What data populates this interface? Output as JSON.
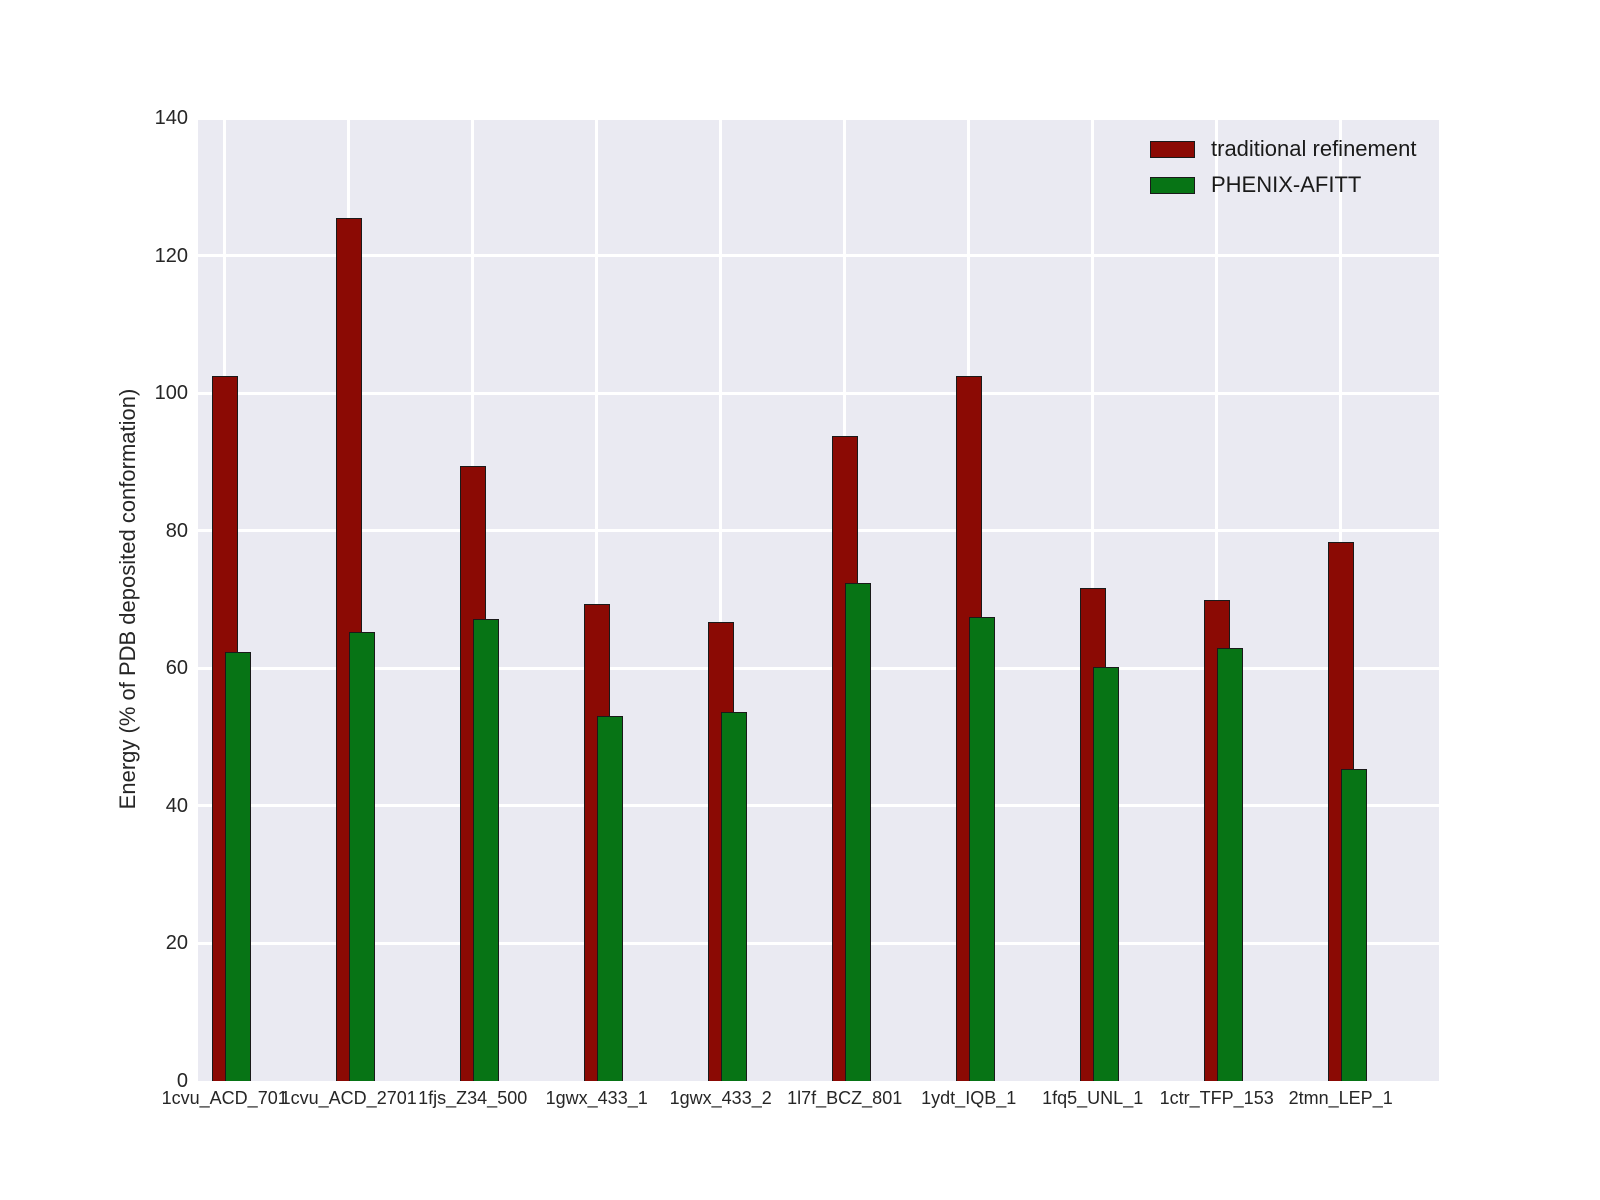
{
  "chart_data": {
    "type": "bar",
    "title": "",
    "xlabel": "",
    "ylabel": "Energy (% of PDB deposited conformation)",
    "ylim": [
      0,
      140
    ],
    "yticks": [
      0,
      20,
      40,
      60,
      80,
      100,
      120,
      140
    ],
    "grid": true,
    "grid_color": "#ffffff",
    "plot_background": "#eaeaf2",
    "legend_position": "upper right",
    "categories": [
      "1cvu_ACD_701",
      "1cvu_ACD_2701",
      "1fjs_Z34_500",
      "1gwx_433_1",
      "1gwx_433_2",
      "1l7f_BCZ_801",
      "1ydt_IQB_1",
      "1fq5_UNL_1",
      "1ctr_TFP_153",
      "2tmn_LEP_1"
    ],
    "series": [
      {
        "name": "traditional refinement",
        "color": "#8b0a04",
        "edge_color": "#1a1a1a",
        "values": [
          102.5,
          125.5,
          89.4,
          69.4,
          66.8,
          93.7,
          102.5,
          71.7,
          69.9,
          78.4
        ]
      },
      {
        "name": "PHENIX-AFITT",
        "color": "#077415",
        "edge_color": "#1a1a1a",
        "values": [
          62.3,
          65.3,
          67.2,
          53.0,
          53.7,
          72.4,
          67.5,
          60.2,
          63.0,
          45.3
        ]
      }
    ]
  }
}
